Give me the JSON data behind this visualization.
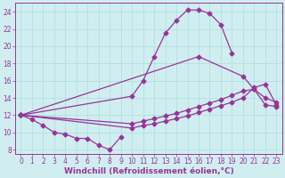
{
  "background_color": "#d0eef0",
  "grid_color": "#aadddd",
  "line_color": "#993399",
  "marker": "D",
  "markersize": 2.5,
  "linewidth": 0.9,
  "xlabel": "Windchill (Refroidissement éolien,°C)",
  "xlabel_fontsize": 6.5,
  "tick_fontsize": 5.5,
  "xlim": [
    -0.5,
    23.5
  ],
  "ylim": [
    7.5,
    25
  ],
  "yticks": [
    8,
    10,
    12,
    14,
    16,
    18,
    20,
    22,
    24
  ],
  "xticks": [
    0,
    1,
    2,
    3,
    4,
    5,
    6,
    7,
    8,
    9,
    10,
    11,
    12,
    13,
    14,
    15,
    16,
    17,
    18,
    19,
    20,
    21,
    22,
    23
  ],
  "lines": [
    {
      "x": [
        0,
        1,
        2,
        3,
        4,
        5,
        6,
        7,
        8,
        9
      ],
      "y": [
        12.0,
        11.5,
        10.8,
        10.0,
        9.8,
        9.3,
        9.3,
        8.5,
        8.0,
        9.5
      ]
    },
    {
      "x": [
        0,
        10,
        11,
        12,
        13,
        14,
        15,
        16,
        17,
        18,
        19
      ],
      "y": [
        12.0,
        14.2,
        16.0,
        18.8,
        21.5,
        23.0,
        24.2,
        24.2,
        23.8,
        22.5,
        19.2
      ]
    },
    {
      "x": [
        0,
        16,
        20,
        21,
        22,
        23
      ],
      "y": [
        12.0,
        18.8,
        16.5,
        15.0,
        14.0,
        13.5
      ]
    },
    {
      "x": [
        0,
        10,
        11,
        12,
        13,
        14,
        15,
        16,
        17,
        18,
        19,
        20,
        21,
        22,
        23
      ],
      "y": [
        12.0,
        11.0,
        11.3,
        11.6,
        11.9,
        12.2,
        12.6,
        13.0,
        13.4,
        13.8,
        14.3,
        14.8,
        15.0,
        13.2,
        13.0
      ]
    },
    {
      "x": [
        0,
        10,
        11,
        12,
        13,
        14,
        15,
        16,
        17,
        18,
        19,
        20,
        21,
        22,
        23
      ],
      "y": [
        12.0,
        10.5,
        10.8,
        11.0,
        11.3,
        11.6,
        11.9,
        12.3,
        12.7,
        13.1,
        13.5,
        14.0,
        15.2,
        15.6,
        13.2
      ]
    }
  ]
}
